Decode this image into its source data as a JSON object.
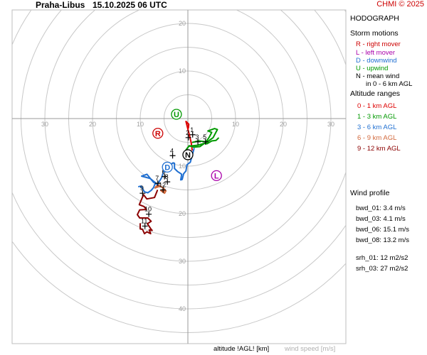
{
  "header": {
    "station": "Praha-Libus",
    "datetime": "15.10.2025 06 UTC",
    "copyright": "CHMI © 2025"
  },
  "footer": {
    "xlabel": "altitude !AGL! [km]",
    "ylabel": "wind speed [m/s]"
  },
  "panel": {
    "title": "HODOGRAPH",
    "storm_title": "Storm motions",
    "storm_items": [
      {
        "text": "R - right mover",
        "color": "#cc0000"
      },
      {
        "text": "L - left mover",
        "color": "#aa00aa"
      },
      {
        "text": "D - downwind",
        "color": "#1f6fd1"
      },
      {
        "text": "U - upwind",
        "color": "#009900"
      },
      {
        "text": "N - mean wind",
        "color": "#000000"
      },
      {
        "text": "in 0 - 6 km AGL",
        "color": "#000000"
      }
    ],
    "alt_title": "Altitude ranges",
    "alt_items": [
      {
        "text": "0 - 1 km AGL",
        "color": "#dd0000"
      },
      {
        "text": "1 - 3 km AGL",
        "color": "#009900"
      },
      {
        "text": "3 - 6 km AGL",
        "color": "#1f6fd1"
      },
      {
        "text": "6 - 9 km AGL",
        "color": "#d2693c"
      },
      {
        "text": "9 - 12 km AGL",
        "color": "#8b0000"
      }
    ],
    "wind_title": "Wind profile",
    "wind_items": [
      "bwd_01: 3.4 m/s",
      "bwd_03: 4.1 m/s",
      "bwd_06: 15.1 m/s",
      "bwd_08: 13.2 m/s"
    ],
    "srh_items": [
      "srh_01: 12 m2/s2",
      "srh_03: 27 m2/s2"
    ]
  },
  "chart_data": {
    "type": "line",
    "xlim": [
      -38,
      30
    ],
    "ylim": [
      -50,
      22
    ],
    "rings": [
      5,
      10,
      15,
      20,
      25,
      30,
      35,
      40,
      45
    ],
    "x_tick_labels": [
      {
        "text": "30",
        "value": -30
      },
      {
        "text": "20",
        "value": -20
      },
      {
        "text": "10",
        "value": -10
      },
      {
        "text": "10",
        "value": 10
      },
      {
        "text": "20",
        "value": 20
      },
      {
        "text": "30",
        "value": 30
      }
    ],
    "y_tick_labels": [
      {
        "text": "20",
        "value": 20
      },
      {
        "text": "10",
        "value": 10
      },
      {
        "text": "10",
        "value": -10
      },
      {
        "text": "20",
        "value": -20
      },
      {
        "text": "30",
        "value": -30
      },
      {
        "text": "40",
        "value": -40
      }
    ],
    "series": [
      {
        "color": "#dd0000",
        "points": [
          [
            0.1,
            -2.0
          ],
          [
            0.2,
            -1.2
          ],
          [
            -0.4,
            -0.6
          ],
          [
            0.3,
            -3.4
          ],
          [
            0.7,
            -5.1
          ],
          [
            0.9,
            -6.6
          ]
        ]
      },
      {
        "color": "#009900",
        "points": [
          [
            1.0,
            -5.0
          ],
          [
            2.3,
            -4.7
          ],
          [
            3.8,
            -4.9
          ],
          [
            4.5,
            -3.9
          ],
          [
            5.0,
            -2.9
          ],
          [
            4.2,
            -2.6
          ],
          [
            5.6,
            -2.1
          ],
          [
            6.2,
            -2.3
          ],
          [
            5.3,
            -4.0
          ],
          [
            4.2,
            -4.8
          ],
          [
            3.5,
            -5.2
          ],
          [
            2.1,
            -5.6
          ],
          [
            0.2,
            -5.8
          ],
          [
            -0.4,
            -6.6
          ],
          [
            0.3,
            -5.7
          ],
          [
            1.2,
            -6.0
          ],
          [
            2.5,
            -5.9
          ],
          [
            3.5,
            -5.2
          ],
          [
            4.0,
            -5.3
          ],
          [
            5.0,
            -4.7
          ],
          [
            5.9,
            -4.6
          ],
          [
            6.4,
            -4.1
          ]
        ]
      },
      {
        "color": "#1f6fd1",
        "points": [
          [
            1.3,
            -6.3
          ],
          [
            0.5,
            -9.2
          ],
          [
            -0.2,
            -9.7
          ],
          [
            -0.4,
            -11.0
          ],
          [
            -0.9,
            -11.6
          ],
          [
            -1.2,
            -12.8
          ],
          [
            -1.5,
            -12.9
          ],
          [
            -1.3,
            -11.7
          ],
          [
            -2.2,
            -11.1
          ],
          [
            -2.8,
            -10.5
          ],
          [
            -2.8,
            -9.4
          ],
          [
            -3.1,
            -9.3
          ],
          [
            -4.6,
            -10.5
          ],
          [
            -5.1,
            -11.1
          ],
          [
            -5.5,
            -12.4
          ],
          [
            -6.4,
            -13.9
          ],
          [
            -7.2,
            -13.4
          ],
          [
            -7.7,
            -12.8
          ],
          [
            -8.6,
            -11.7
          ],
          [
            -9.7,
            -12.1
          ],
          [
            -7.9,
            -12.6
          ],
          [
            -6.8,
            -13.5
          ],
          [
            -7.2,
            -14.5
          ],
          [
            -7.7,
            -15.1
          ],
          [
            -8.4,
            -15.6
          ],
          [
            -9.1,
            -15.4
          ],
          [
            -9.8,
            -14.2
          ],
          [
            -10.3,
            -14.3
          ]
        ]
      },
      {
        "color": "#d2693c",
        "points": [
          [
            -6.0,
            -14.0
          ],
          [
            -6.6,
            -14.2
          ],
          [
            -6.9,
            -14.6
          ],
          [
            -5.8,
            -14.2
          ],
          [
            -4.9,
            -14.8
          ],
          [
            -5.7,
            -15.1
          ],
          [
            -4.6,
            -15.2
          ],
          [
            -4.9,
            -15.7
          ],
          [
            -5.6,
            -15.2
          ],
          [
            -4.9,
            -15.5
          ]
        ]
      },
      {
        "color": "#8b0000",
        "points": [
          [
            -6.4,
            -15.1
          ],
          [
            -7.0,
            -16.6
          ],
          [
            -8.6,
            -16.9
          ],
          [
            -9.3,
            -16.0
          ],
          [
            -10.2,
            -18.1
          ],
          [
            -9.2,
            -18.5
          ],
          [
            -8.7,
            -19.1
          ],
          [
            -10.1,
            -19.2
          ],
          [
            -10.6,
            -20.2
          ],
          [
            -10.1,
            -20.9
          ],
          [
            -8.4,
            -20.9
          ],
          [
            -7.7,
            -21.6
          ],
          [
            -8.5,
            -22.1
          ],
          [
            -7.7,
            -23.3
          ],
          [
            -7.5,
            -23.5
          ],
          [
            -8.1,
            -23.4
          ],
          [
            -7.8,
            -24.2
          ],
          [
            -8.6,
            -23.8
          ],
          [
            -9.1,
            -24.2
          ],
          [
            -9.5,
            -23.3
          ],
          [
            -10.0,
            -23.2
          ],
          [
            -10.0,
            -22.1
          ]
        ]
      }
    ],
    "altitude_markers": [
      {
        "label": "1",
        "x": 1.0,
        "y": -3.4
      },
      {
        "label": "2",
        "x": 0.1,
        "y": -4.0
      },
      {
        "label": "3",
        "x": 2.1,
        "y": -4.9
      },
      {
        "label": "4",
        "x": -3.2,
        "y": -7.8
      },
      {
        "label": "5",
        "x": 3.7,
        "y": -4.9
      },
      {
        "label": "6",
        "x": -4.9,
        "y": -12.2
      },
      {
        "label": "7",
        "x": -6.3,
        "y": -13.6
      },
      {
        "label": "8",
        "x": -4.3,
        "y": -13.3
      },
      {
        "label": "9",
        "x": -9.5,
        "y": -15.7
      },
      {
        "label": "10",
        "x": -8.2,
        "y": -20.1
      },
      {
        "label": "11",
        "x": -9.0,
        "y": -22.6
      },
      {
        "label": "12",
        "x": -5.2,
        "y": -15.0
      }
    ],
    "storm_motions": [
      {
        "label": "R",
        "x": -6.3,
        "y": -3.1,
        "color": "#cc0000"
      },
      {
        "label": "L",
        "x": 6.0,
        "y": -12.0,
        "color": "#aa00aa"
      },
      {
        "label": "D",
        "x": -4.3,
        "y": -10.2,
        "color": "#1f6fd1"
      },
      {
        "label": "U",
        "x": -2.4,
        "y": 0.9,
        "color": "#009900"
      },
      {
        "label": "N",
        "x": 0.0,
        "y": -7.6,
        "color": "#000000"
      }
    ]
  }
}
